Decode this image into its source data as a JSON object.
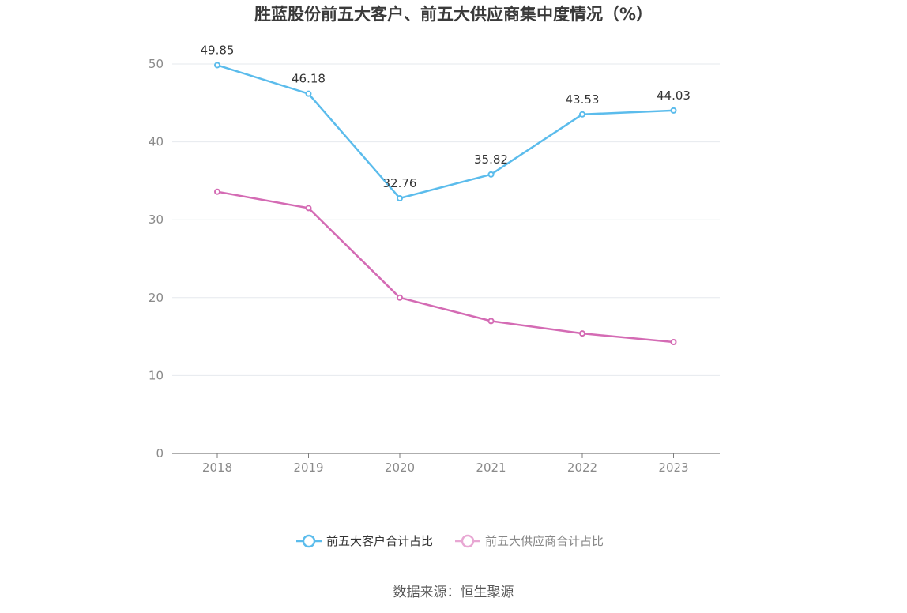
{
  "chart_data": {
    "type": "line",
    "title": "胜蓝股份前五大客户、前五大供应商集中度情况（%）",
    "categories": [
      "2018",
      "2019",
      "2020",
      "2021",
      "2022",
      "2023"
    ],
    "series": [
      {
        "name": "前五大客户合计占比",
        "color": "#5bbcec",
        "values": [
          49.85,
          46.18,
          32.76,
          35.82,
          43.53,
          44.03
        ],
        "labels": [
          "49.85",
          "46.18",
          "32.76",
          "35.82",
          "43.53",
          "44.03"
        ],
        "show_labels": true
      },
      {
        "name": "前五大供应商合计占比",
        "color": "#d46bb4",
        "legend_color": "#e8a7d3",
        "values": [
          33.6,
          31.5,
          20.0,
          17.0,
          15.4,
          14.3
        ],
        "show_labels": false
      }
    ],
    "ylim": [
      0,
      50
    ],
    "yticks": [
      "0",
      "10",
      "20",
      "30",
      "40",
      "50"
    ],
    "grid": true,
    "legend_position": "bottom"
  },
  "footer": {
    "source": "数据来源：恒生聚源"
  }
}
